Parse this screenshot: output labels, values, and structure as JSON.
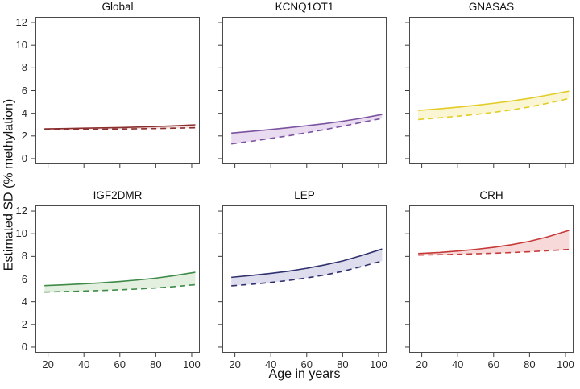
{
  "figure": {
    "xlabel": "Age in years",
    "ylabel": "Estimated SD (% methylation)"
  },
  "axes": {
    "x_ticks": [
      20,
      40,
      60,
      80,
      100
    ],
    "y_ticks": [
      0,
      2,
      4,
      6,
      8,
      10,
      12
    ],
    "x_domain": [
      13,
      104.5
    ],
    "y_domain": [
      -0.5,
      12.5
    ],
    "tick_color": "#3c3c3c",
    "border_color": "#4a4a4a"
  },
  "chart_data": [
    {
      "type": "line",
      "title": "Global",
      "row": 0,
      "col": 0,
      "line_color": "#8B2F2F",
      "fill_color": "#F3DCDC",
      "x": [
        18,
        30,
        40,
        50,
        60,
        70,
        80,
        90,
        102
      ],
      "series": [
        {
          "name": "estimated SD upper",
          "style": "solid",
          "values": [
            2.62,
            2.65,
            2.68,
            2.71,
            2.74,
            2.78,
            2.83,
            2.89,
            2.98
          ]
        },
        {
          "name": "estimated SD lower",
          "style": "dashed",
          "values": [
            2.55,
            2.56,
            2.58,
            2.59,
            2.61,
            2.63,
            2.65,
            2.68,
            2.72
          ]
        }
      ]
    },
    {
      "type": "line",
      "title": "KCNQ1OT1",
      "row": 0,
      "col": 1,
      "line_color": "#7B52A0",
      "fill_color": "#E9DCF0",
      "x": [
        18,
        30,
        40,
        50,
        60,
        70,
        80,
        90,
        102
      ],
      "series": [
        {
          "name": "estimated SD upper",
          "style": "solid",
          "values": [
            2.25,
            2.42,
            2.57,
            2.73,
            2.9,
            3.08,
            3.3,
            3.55,
            3.9
          ]
        },
        {
          "name": "estimated SD lower",
          "style": "dashed",
          "values": [
            1.3,
            1.55,
            1.78,
            2.02,
            2.28,
            2.56,
            2.86,
            3.18,
            3.55
          ]
        }
      ]
    },
    {
      "type": "line",
      "title": "GNASAS",
      "row": 0,
      "col": 2,
      "line_color": "#E3CC26",
      "fill_color": "#FAF5D2",
      "x": [
        18,
        30,
        40,
        50,
        60,
        70,
        80,
        90,
        102
      ],
      "series": [
        {
          "name": "estimated SD upper",
          "style": "solid",
          "values": [
            4.25,
            4.4,
            4.54,
            4.7,
            4.88,
            5.08,
            5.32,
            5.6,
            5.95
          ]
        },
        {
          "name": "estimated SD lower",
          "style": "dashed",
          "values": [
            3.45,
            3.6,
            3.74,
            3.9,
            4.08,
            4.3,
            4.56,
            4.88,
            5.3
          ]
        }
      ]
    },
    {
      "type": "line",
      "title": "IGF2DMR",
      "row": 1,
      "col": 0,
      "line_color": "#3E8A48",
      "fill_color": "#E3F0DF",
      "x": [
        18,
        30,
        40,
        50,
        60,
        70,
        80,
        90,
        102
      ],
      "series": [
        {
          "name": "estimated SD upper",
          "style": "solid",
          "values": [
            5.42,
            5.5,
            5.58,
            5.67,
            5.78,
            5.92,
            6.08,
            6.3,
            6.6
          ]
        },
        {
          "name": "estimated SD lower",
          "style": "dashed",
          "values": [
            4.85,
            4.9,
            4.94,
            4.99,
            5.05,
            5.12,
            5.21,
            5.33,
            5.5
          ]
        }
      ]
    },
    {
      "type": "line",
      "title": "LEP",
      "row": 1,
      "col": 1,
      "line_color": "#30306E",
      "fill_color": "#DDDDEE",
      "x": [
        18,
        30,
        40,
        50,
        60,
        70,
        80,
        90,
        102
      ],
      "series": [
        {
          "name": "estimated SD upper",
          "style": "solid",
          "values": [
            6.15,
            6.33,
            6.5,
            6.7,
            6.95,
            7.25,
            7.6,
            8.05,
            8.65
          ]
        },
        {
          "name": "estimated SD lower",
          "style": "dashed",
          "values": [
            5.4,
            5.55,
            5.7,
            5.88,
            6.1,
            6.36,
            6.68,
            7.08,
            7.6
          ]
        }
      ]
    },
    {
      "type": "line",
      "title": "CRH",
      "row": 1,
      "col": 2,
      "line_color": "#C63939",
      "fill_color": "#F7D9D9",
      "x": [
        18,
        30,
        40,
        50,
        60,
        70,
        80,
        90,
        102
      ],
      "series": [
        {
          "name": "estimated SD upper",
          "style": "solid",
          "values": [
            8.25,
            8.35,
            8.47,
            8.62,
            8.8,
            9.03,
            9.33,
            9.72,
            10.3
          ]
        },
        {
          "name": "estimated SD lower",
          "style": "dashed",
          "values": [
            8.12,
            8.15,
            8.19,
            8.23,
            8.28,
            8.34,
            8.41,
            8.5,
            8.62
          ]
        }
      ]
    }
  ]
}
